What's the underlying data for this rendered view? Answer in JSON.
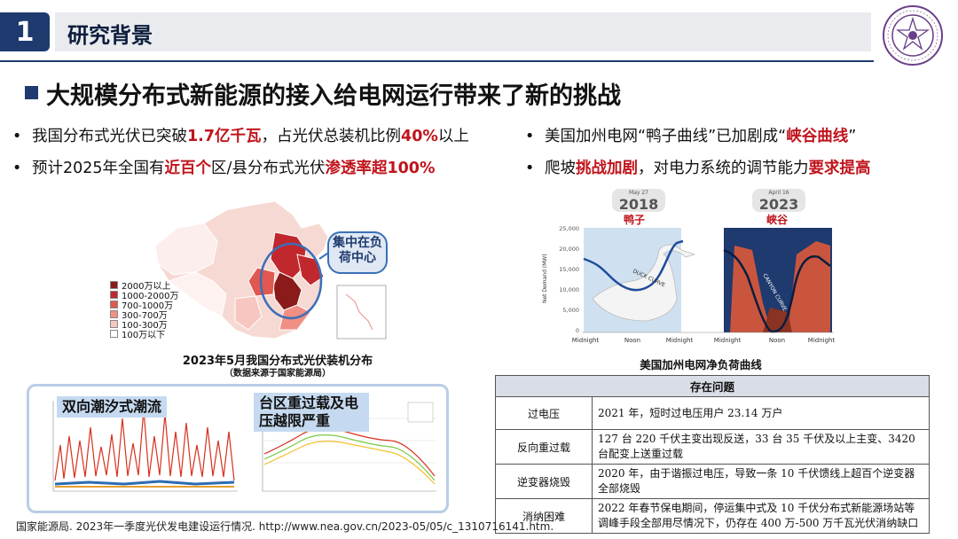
{
  "header": {
    "section_number": "1",
    "section_title": "研究背景"
  },
  "headline": "大规模分布式新能源的接入给电网运行带来了新的挑战",
  "bullets_left": [
    {
      "parts": [
        {
          "t": "我国分布式光伏已突破"
        },
        {
          "t": "1.7亿千瓦",
          "hl": true
        },
        {
          "t": "，占光伏总装机比例"
        },
        {
          "t": "40%",
          "hl": true
        },
        {
          "t": "以上"
        }
      ]
    },
    {
      "parts": [
        {
          "t": "预计2025年全国有"
        },
        {
          "t": "近百个",
          "hl": true
        },
        {
          "t": "区/县分布式光伏"
        },
        {
          "t": "渗透率超100%",
          "hl": true
        }
      ]
    }
  ],
  "bullets_right": [
    {
      "parts": [
        {
          "t": "美国加州电网“鸭子曲线”已加剧成“"
        },
        {
          "t": "峡谷曲线",
          "hl": true
        },
        {
          "t": "”"
        }
      ]
    },
    {
      "parts": [
        {
          "t": "爬坡"
        },
        {
          "t": "挑战加剧",
          "hl": true
        },
        {
          "t": "，对电力系统的调节能力"
        },
        {
          "t": "要求提高",
          "hl": true
        }
      ]
    }
  ],
  "map": {
    "callout": "集中在负荷中心",
    "caption": "2023年5月我国分布式光伏装机分布",
    "subcaption": "（数据来源于国家能源局）",
    "legend": [
      {
        "label": "2000万以上",
        "color": "#8b1a1a"
      },
      {
        "label": "1000-2000万",
        "color": "#c0282d"
      },
      {
        "label": "700-1000万",
        "color": "#e0584f"
      },
      {
        "label": "300-700万",
        "color": "#f08f84"
      },
      {
        "label": "100-300万",
        "color": "#f7c6c0"
      },
      {
        "label": "100万以下",
        "color": "#ffffff"
      }
    ]
  },
  "flow": {
    "left_label": "双向潮汐式潮流",
    "right_label": "台区重过载及电压越限严重"
  },
  "duck": {
    "year_left": "2018",
    "date_left": "May 27",
    "label_left": "鸭子",
    "year_right": "2023",
    "date_right": "April 16",
    "label_right": "峡谷",
    "duck_text": "DUCK CURVE",
    "canyon_text": "CANYON CURVE",
    "ylabel": "Net Demand (MW)",
    "yticks": [
      "25,000",
      "20,000",
      "15,000",
      "10,000",
      "5,000",
      "0"
    ],
    "xticks_left": [
      "Midnight",
      "Noon",
      "Midnight"
    ],
    "xticks_right": [
      "Midnight",
      "Noon",
      "Midnight"
    ],
    "caption": "美国加州电网净负荷曲线"
  },
  "table": {
    "header": "存在问题",
    "rows": [
      {
        "k": "过电压",
        "v": "2021 年，短时过电压用户 23.14 万户"
      },
      {
        "k": "反向重过载",
        "v": "127 台 220 千伏主变出现反送，33 台 35 千伏及以上主变、3420 台配变上送重过载"
      },
      {
        "k": "逆变器烧毁",
        "v": "2020 年，由于谐振过电压，导致一条 10 千伏馈线上超百个逆变器全部烧毁"
      },
      {
        "k": "消纳困难",
        "v": "2022 年春节保电期间，停运集中式及 10 千伏分布式新能源场站等调峰手段全部用尽情况下，仍存在 400 万-500 万千瓦光伏消纳缺口"
      }
    ]
  },
  "footnote": "国家能源局. 2023年一季度光伏发电建设运行情况. http://www.nea.gov.cn/2023-05/05/c_1310716141.htm."
}
